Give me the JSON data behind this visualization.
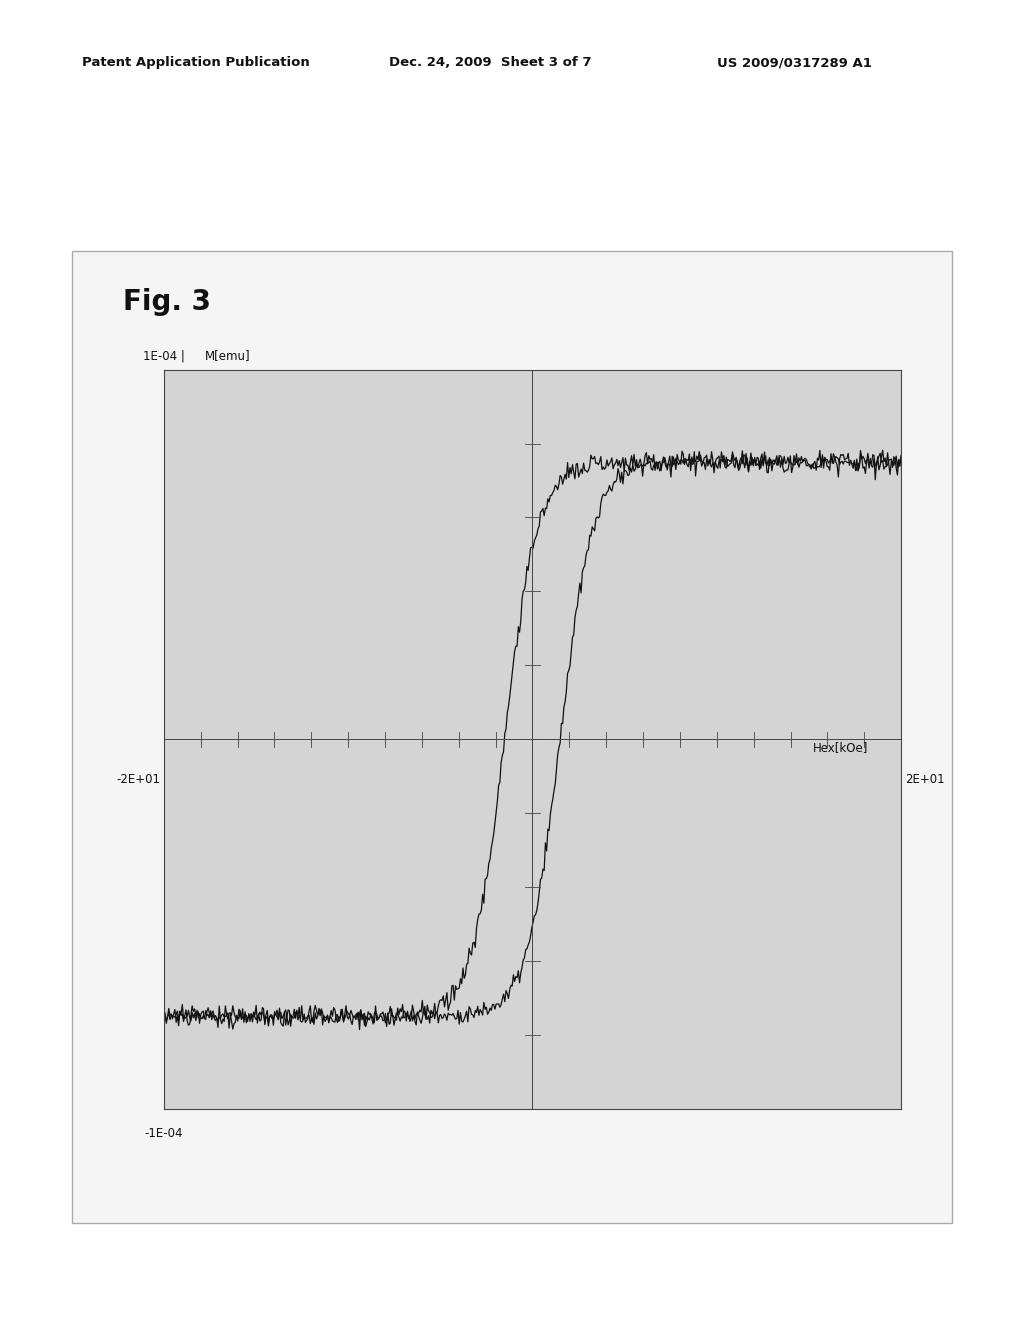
{
  "title": "Fig. 3",
  "xlabel": "Hex[kOe]",
  "ylabel": "M[emu]",
  "xlim": [
    -20,
    20
  ],
  "ylim": [
    -0.0001,
    0.0001
  ],
  "x_label_left": "-2E+01",
  "x_label_right": "2E+01",
  "y_label_top": "1E-04",
  "y_label_bottom": "-1E-04",
  "background_color": "#f0f0f0",
  "plot_bg_color": "#d4d4d4",
  "line_color": "#111111",
  "header_text": "Patent Application Publication    Dec. 24, 2009  Sheet 3 of 7        US 2009/0317289 A1",
  "fig_label": "Fig. 3",
  "noise_amplitude": 3e-06,
  "saturation_value": 7.5e-05
}
